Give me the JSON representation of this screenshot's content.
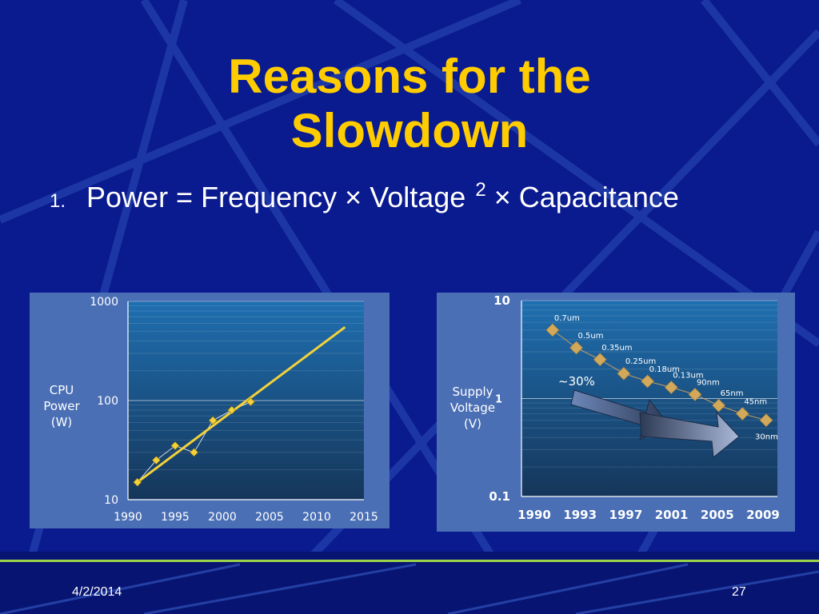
{
  "slide": {
    "title_line1": "Reasons for the",
    "title_line2": "Slowdown",
    "bullet_number": "1.",
    "bullet_text": "Power = Frequency × Voltage",
    "bullet_sup": "2",
    "bullet_tail": "× Capacitance",
    "footer_date": "4/2/2014",
    "footer_page": "27"
  },
  "colors": {
    "background": "#0a1a8f",
    "title": "#ffcc00",
    "panel": "#4a6fb5",
    "plot_top": "#1f6fb0",
    "plot_bottom": "#15365a",
    "trend_line": "#f2d13a",
    "marker": "#d2a95a",
    "footer_line": "#9bd34a"
  },
  "chart_data": [
    {
      "type": "line",
      "ylabel": [
        "CPU",
        "Power",
        "(W)"
      ],
      "xlabel": "",
      "yscale": "log",
      "ylim": [
        10,
        1000
      ],
      "xlim": [
        1990,
        2015
      ],
      "x_ticks": [
        "1990",
        "1995",
        "2000",
        "2005",
        "2010",
        "2015"
      ],
      "y_ticks": [
        "1000",
        "100",
        "10"
      ],
      "grid": true,
      "series": [
        {
          "style": "markers-connected",
          "x": [
            1991,
            1993,
            1995,
            1997,
            1999,
            2001,
            2003
          ],
          "y": [
            15,
            25,
            35,
            30,
            63,
            80,
            97
          ]
        },
        {
          "style": "trend-line",
          "x": [
            1991,
            2013
          ],
          "y": [
            15,
            550
          ]
        }
      ]
    },
    {
      "type": "scatter",
      "ylabel": [
        "Supply",
        "Voltage",
        "(V)"
      ],
      "xlabel": "",
      "yscale": "log",
      "ylim": [
        0.1,
        10
      ],
      "x_ticks": [
        "1990",
        "1993",
        "1997",
        "2001",
        "2005",
        "2009"
      ],
      "y_ticks": [
        "10",
        "1",
        "0.1"
      ],
      "grid": true,
      "annotation": "~30%",
      "points": [
        {
          "label": "0.7um",
          "x": 1991,
          "y": 5.0
        },
        {
          "label": "0.5um",
          "x": 1993,
          "y": 3.3
        },
        {
          "label": "0.35um",
          "x": 1995,
          "y": 2.5
        },
        {
          "label": "0.25um",
          "x": 1997,
          "y": 1.8
        },
        {
          "label": "0.18um",
          "x": 1999,
          "y": 1.5
        },
        {
          "label": "0.13um",
          "x": 2001,
          "y": 1.3
        },
        {
          "label": "90nm",
          "x": 2003,
          "y": 1.1
        },
        {
          "label": "65nm",
          "x": 2005,
          "y": 0.85
        },
        {
          "label": "45nm",
          "x": 2007,
          "y": 0.7
        },
        {
          "label": "30nm",
          "x": 2009,
          "y": 0.6
        }
      ]
    }
  ]
}
